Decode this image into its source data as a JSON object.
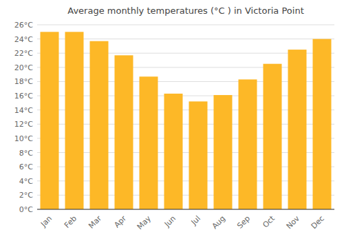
{
  "chart_data": {
    "type": "bar",
    "title": "Average monthly temperatures (°C ) in Victoria Point",
    "categories": [
      "Jan",
      "Feb",
      "Mar",
      "Apr",
      "May",
      "Jun",
      "Jul",
      "Aug",
      "Sep",
      "Oct",
      "Nov",
      "Dec"
    ],
    "values": [
      25.0,
      25.0,
      23.7,
      21.7,
      18.7,
      16.3,
      15.2,
      16.1,
      18.3,
      20.5,
      22.5,
      24.0
    ],
    "color": "#FDB827",
    "ylim": [
      0,
      26
    ],
    "yticks": [
      {
        "value": 0,
        "label": "0°C"
      },
      {
        "value": 2,
        "label": "2°C"
      },
      {
        "value": 4,
        "label": "4°C"
      },
      {
        "value": 6,
        "label": "6°C"
      },
      {
        "value": 8,
        "label": "8°C"
      },
      {
        "value": 10,
        "label": "10°C"
      },
      {
        "value": 12,
        "label": "12°C"
      },
      {
        "value": 14,
        "label": "14°C"
      },
      {
        "value": 16,
        "label": "16°C"
      },
      {
        "value": 18,
        "label": "18°C"
      },
      {
        "value": 20,
        "label": "20°C"
      },
      {
        "value": 22,
        "label": "22°C"
      },
      {
        "value": 24,
        "label": "24°C"
      },
      {
        "value": 26,
        "label": "26°C"
      }
    ],
    "grid": true
  }
}
